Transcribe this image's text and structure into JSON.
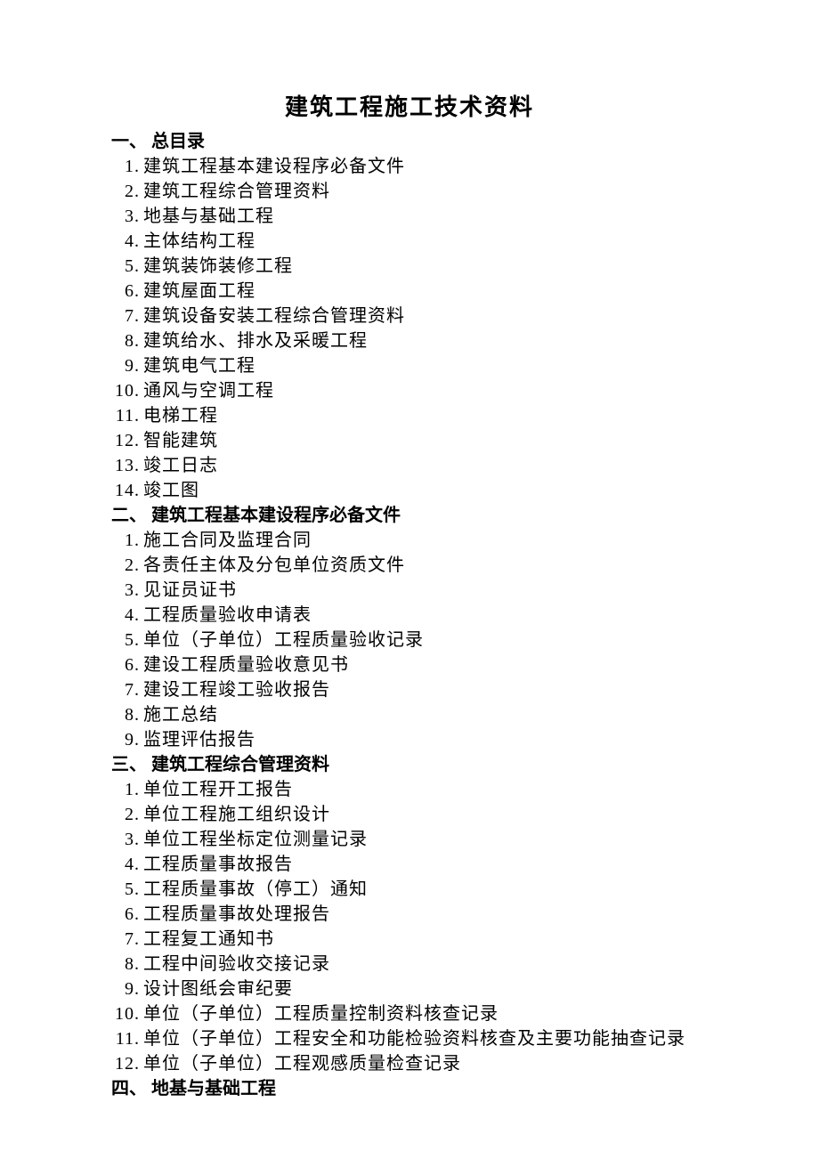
{
  "title": "建筑工程施工技术资料",
  "sections": [
    {
      "header": "一、 总目录",
      "items": [
        {
          "n": "1.",
          "t": "建筑工程基本建设程序必备文件"
        },
        {
          "n": "2.",
          "t": "建筑工程综合管理资料"
        },
        {
          "n": "3.",
          "t": "地基与基础工程"
        },
        {
          "n": "4.",
          "t": "主体结构工程"
        },
        {
          "n": "5.",
          "t": "建筑装饰装修工程"
        },
        {
          "n": "6.",
          "t": "建筑屋面工程"
        },
        {
          "n": "7.",
          "t": "建筑设备安装工程综合管理资料"
        },
        {
          "n": "8.",
          "t": "建筑给水、排水及采暖工程"
        },
        {
          "n": "9.",
          "t": "建筑电气工程"
        },
        {
          "n": "10.",
          "t": "通风与空调工程"
        },
        {
          "n": "11.",
          "t": "电梯工程"
        },
        {
          "n": "12.",
          "t": "智能建筑"
        },
        {
          "n": "13.",
          "t": "竣工日志"
        },
        {
          "n": "14.",
          "t": "竣工图"
        }
      ]
    },
    {
      "header": "二、 建筑工程基本建设程序必备文件",
      "items": [
        {
          "n": "1.",
          "t": "施工合同及监理合同"
        },
        {
          "n": "2.",
          "t": "各责任主体及分包单位资质文件"
        },
        {
          "n": "3.",
          "t": "见证员证书"
        },
        {
          "n": "4.",
          "t": "工程质量验收申请表"
        },
        {
          "n": "5.",
          "t": "单位（子单位）工程质量验收记录"
        },
        {
          "n": "6.",
          "t": "建设工程质量验收意见书"
        },
        {
          "n": "7.",
          "t": "建设工程竣工验收报告"
        },
        {
          "n": "8.",
          "t": "施工总结"
        },
        {
          "n": "9.",
          "t": "监理评估报告"
        }
      ]
    },
    {
      "header": "三、 建筑工程综合管理资料",
      "items": [
        {
          "n": "1.",
          "t": "单位工程开工报告"
        },
        {
          "n": "2.",
          "t": "单位工程施工组织设计"
        },
        {
          "n": "3.",
          "t": "单位工程坐标定位测量记录"
        },
        {
          "n": "4.",
          "t": "工程质量事故报告"
        },
        {
          "n": "5.",
          "t": "工程质量事故（停工）通知"
        },
        {
          "n": "6.",
          "t": "工程质量事故处理报告"
        },
        {
          "n": "7.",
          "t": "工程复工通知书"
        },
        {
          "n": "8.",
          "t": "工程中间验收交接记录"
        },
        {
          "n": "9.",
          "t": "设计图纸会审纪要"
        },
        {
          "n": "10.",
          "t": "单位（子单位）工程质量控制资料核查记录"
        },
        {
          "n": "11.",
          "t": "单位（子单位）工程安全和功能检验资料核查及主要功能抽查记录"
        },
        {
          "n": "12.",
          "t": "单位（子单位）工程观感质量检查记录"
        }
      ]
    },
    {
      "header": "四、 地基与基础工程",
      "items": []
    }
  ],
  "style": {
    "title_fontsize": 26,
    "body_fontsize": 20,
    "text_color": "#000000",
    "background_color": "#ffffff",
    "font_family": "SimSun"
  }
}
